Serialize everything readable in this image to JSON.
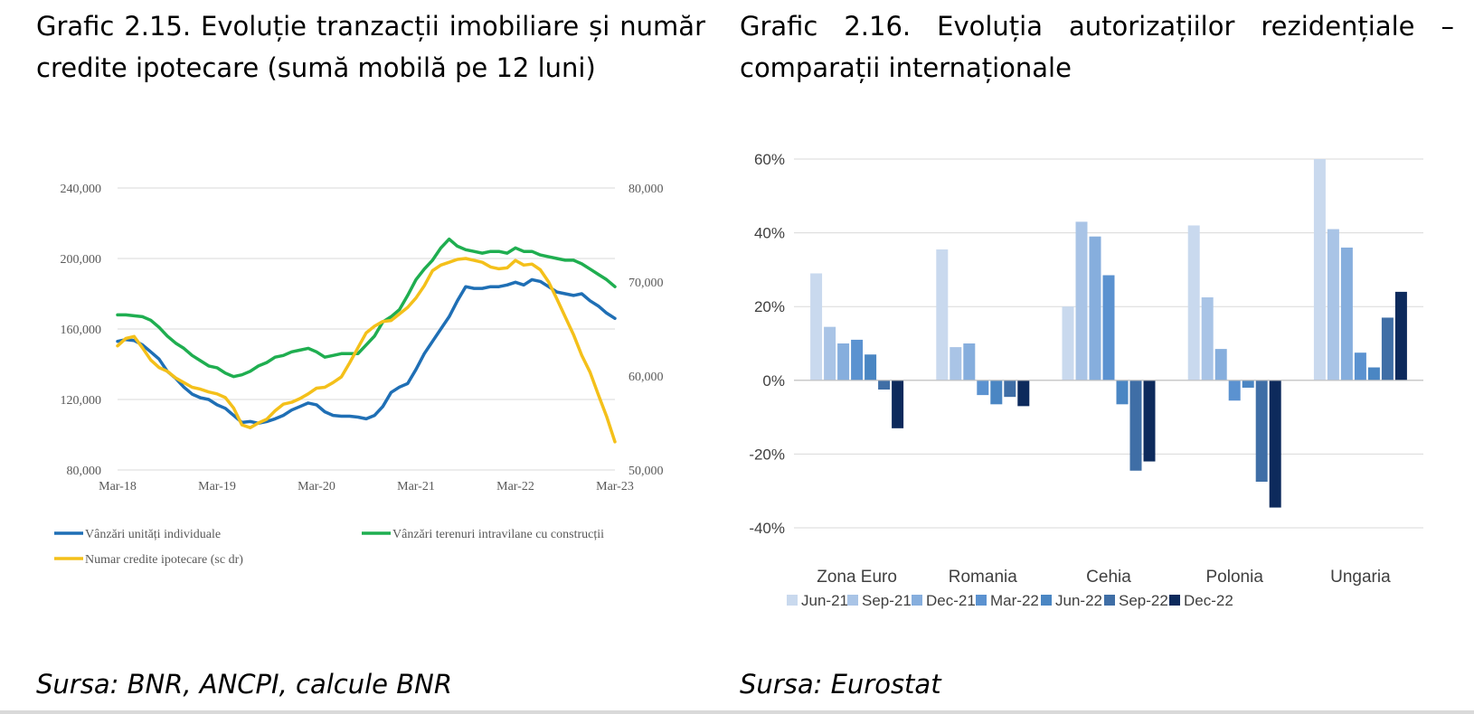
{
  "titles": {
    "left": "Grafic 2.15. Evoluție tranzacții imobiliare și număr credite ipotecare (sumă mobilă pe 12 luni)",
    "right": "Grafic 2.16.  Evoluția autorizațiilor rezidențiale – comparații internaționale"
  },
  "sources": {
    "left": "Sursa:  BNR, ANCPI, calcule BNR",
    "right": "Sursa: Eurostat"
  },
  "chart_data": [
    {
      "type": "line",
      "title": "Grafic 2.15. Evoluție tranzacții imobiliare și număr credite ipotecare (sumă mobilă pe 12 luni)",
      "x_tick_labels": [
        "Mar-18",
        "Mar-19",
        "Mar-20",
        "Mar-21",
        "Mar-22",
        "Mar-23"
      ],
      "y_left": {
        "ylim": [
          80000,
          240000
        ],
        "ticks": [
          80000,
          120000,
          160000,
          200000,
          240000
        ],
        "tick_labels": [
          "80,000",
          "120,000",
          "160,000",
          "200,000",
          "240,000"
        ]
      },
      "y_right": {
        "ylim": [
          50000,
          80000
        ],
        "ticks": [
          50000,
          60000,
          70000,
          80000
        ],
        "tick_labels": [
          "50,000",
          "60,000",
          "70,000",
          "80,000"
        ]
      },
      "grid": true,
      "legend_position": "bottom",
      "months": [
        "Mar-18",
        "Apr-18",
        "May-18",
        "Jun-18",
        "Jul-18",
        "Aug-18",
        "Sep-18",
        "Oct-18",
        "Nov-18",
        "Dec-18",
        "Jan-19",
        "Feb-19",
        "Mar-19",
        "Apr-19",
        "May-19",
        "Jun-19",
        "Jul-19",
        "Aug-19",
        "Sep-19",
        "Oct-19",
        "Nov-19",
        "Dec-19",
        "Jan-20",
        "Feb-20",
        "Mar-20",
        "Apr-20",
        "May-20",
        "Jun-20",
        "Jul-20",
        "Aug-20",
        "Sep-20",
        "Oct-20",
        "Nov-20",
        "Dec-20",
        "Jan-21",
        "Feb-21",
        "Mar-21",
        "Apr-21",
        "May-21",
        "Jun-21",
        "Jul-21",
        "Aug-21",
        "Sep-21",
        "Oct-21",
        "Nov-21",
        "Dec-21",
        "Jan-22",
        "Feb-22",
        "Mar-22",
        "Apr-22",
        "May-22",
        "Jun-22",
        "Jul-22",
        "Aug-22",
        "Sep-22",
        "Oct-22",
        "Nov-22",
        "Dec-22",
        "Jan-23",
        "Feb-23",
        "Mar-23"
      ],
      "series": [
        {
          "name": "Vânzări unități individuale",
          "axis": "left",
          "color": "#1f6fb5",
          "values": [
            153000,
            154000,
            153500,
            151000,
            147000,
            143000,
            136000,
            132000,
            127000,
            123000,
            121000,
            120000,
            117000,
            115000,
            111000,
            107000,
            107500,
            106500,
            107500,
            109000,
            111000,
            114000,
            116000,
            118000,
            117000,
            113000,
            111000,
            110500,
            110500,
            110000,
            109000,
            111000,
            116000,
            124000,
            127000,
            129000,
            137000,
            146000,
            153000,
            160000,
            167000,
            176000,
            184000,
            183000,
            183000,
            184000,
            184000,
            185000,
            186500,
            185000,
            188000,
            187000,
            184000,
            181000,
            180000,
            179000,
            180000,
            176000,
            173000,
            169000,
            166000
          ]
        },
        {
          "name": "Vânzări terenuri intravilane cu construcții",
          "axis": "left",
          "color": "#1fae50",
          "values": [
            168000,
            168000,
            167500,
            167000,
            165000,
            161000,
            156000,
            152000,
            149000,
            145000,
            142000,
            139000,
            138000,
            135000,
            133000,
            134000,
            136000,
            139000,
            141000,
            144000,
            145000,
            147000,
            148000,
            149000,
            147000,
            144000,
            145000,
            146000,
            146000,
            146000,
            151000,
            156000,
            164000,
            167000,
            171000,
            179000,
            188000,
            194000,
            199000,
            206000,
            211000,
            207000,
            205000,
            204000,
            203000,
            204000,
            204000,
            203000,
            206000,
            204000,
            204000,
            202000,
            201000,
            200000,
            199000,
            199000,
            197000,
            194000,
            191000,
            188000,
            184000
          ]
        },
        {
          "name": "Numar credite ipotecare (sc dr)",
          "axis": "right",
          "color": "#f4c01a",
          "values": [
            63200,
            64000,
            64200,
            63000,
            61700,
            60900,
            60500,
            59800,
            59300,
            58800,
            58600,
            58300,
            58100,
            57700,
            56600,
            54800,
            54500,
            55000,
            55400,
            56300,
            57000,
            57200,
            57600,
            58100,
            58700,
            58800,
            59300,
            59900,
            61400,
            63000,
            64600,
            65300,
            65800,
            65900,
            66600,
            67300,
            68300,
            69600,
            71200,
            71800,
            72100,
            72400,
            72500,
            72300,
            72100,
            71600,
            71400,
            71500,
            72300,
            71800,
            71900,
            71300,
            70000,
            68200,
            66300,
            64400,
            62200,
            60400,
            58000,
            55700,
            53000
          ]
        }
      ]
    },
    {
      "type": "bar",
      "title": "Grafic 2.16.  Evoluția autorizațiilor rezidențiale – comparații internaționale",
      "categories": [
        "Zona Euro",
        "Romania",
        "Cehia",
        "Polonia",
        "Ungaria"
      ],
      "ylim": [
        -0.4,
        0.6
      ],
      "y_ticks": [
        -0.4,
        -0.2,
        0,
        0.2,
        0.4,
        0.6
      ],
      "y_tick_labels": [
        "-40%",
        "-20%",
        "0%",
        "20%",
        "40%",
        "60%"
      ],
      "grid": true,
      "legend_position": "bottom",
      "series": [
        {
          "name": "Jun-21",
          "color": "#c9d9ee",
          "values": [
            0.29,
            0.355,
            0.2,
            0.42,
            0.6
          ]
        },
        {
          "name": "Sep-21",
          "color": "#a9c4e6",
          "values": [
            0.145,
            0.09,
            0.43,
            0.225,
            0.41
          ]
        },
        {
          "name": "Dec-21",
          "color": "#86aedd",
          "values": [
            0.1,
            0.1,
            0.39,
            0.085,
            0.36
          ]
        },
        {
          "name": "Mar-22",
          "color": "#5b92d0",
          "values": [
            0.11,
            -0.04,
            0.285,
            -0.055,
            0.075
          ]
        },
        {
          "name": "Jun-22",
          "color": "#4a86c3",
          "values": [
            0.07,
            -0.065,
            -0.065,
            -0.02,
            0.035
          ]
        },
        {
          "name": "Sep-22",
          "color": "#3f6ea6",
          "values": [
            -0.025,
            -0.045,
            -0.245,
            -0.275,
            0.17
          ]
        },
        {
          "name": "Dec-22",
          "color": "#0d2a5c",
          "values": [
            -0.13,
            -0.07,
            -0.22,
            -0.345,
            0.24
          ]
        }
      ]
    }
  ]
}
